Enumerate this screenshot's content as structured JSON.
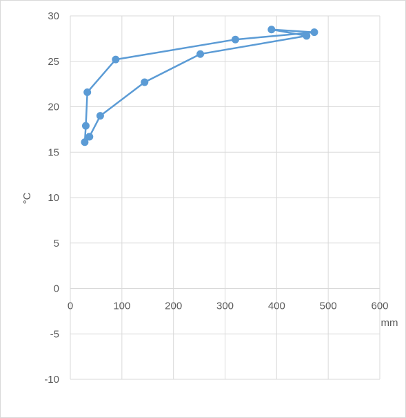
{
  "chart_data": {
    "type": "line",
    "title": "",
    "xlabel": "mm",
    "ylabel": "°C",
    "xlim": [
      0,
      600
    ],
    "ylim": [
      -10,
      30
    ],
    "x_ticks": [
      0,
      100,
      200,
      300,
      400,
      500,
      600
    ],
    "y_ticks": [
      -10,
      -5,
      0,
      5,
      10,
      15,
      20,
      25,
      30
    ],
    "x_tick_labels": [
      "0",
      "100",
      "200",
      "300",
      "400",
      "500",
      "600"
    ],
    "y_tick_labels": [
      "-10",
      "-5",
      "0",
      "5",
      "10",
      "15",
      "20",
      "25",
      "30"
    ],
    "grid": true,
    "legend": "none",
    "series": [
      {
        "color": "#5b9bd5",
        "marker": "circle",
        "x": [
          37,
          58,
          144,
          252,
          458,
          390,
          473,
          320,
          88,
          33,
          30,
          28,
          37
        ],
        "y": [
          16.7,
          19.0,
          22.7,
          25.8,
          27.8,
          28.5,
          28.2,
          27.4,
          25.2,
          21.6,
          17.9,
          16.1,
          16.7
        ]
      }
    ]
  }
}
